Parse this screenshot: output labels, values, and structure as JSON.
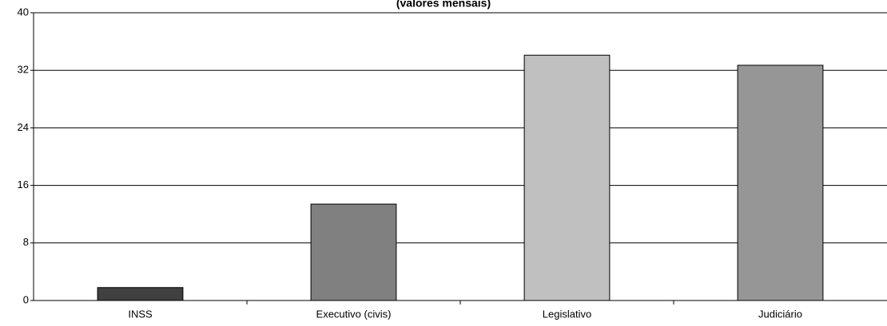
{
  "chart_data": {
    "type": "bar",
    "subtitle": "(valores mensais)",
    "categories": [
      "INSS",
      "Executivo (civis)",
      "Legislativo",
      "Judiciário"
    ],
    "values": [
      1.8,
      13.4,
      34.1,
      32.7
    ],
    "colors": [
      "#404040",
      "#808080",
      "#c0c0c0",
      "#969696"
    ],
    "ylim": [
      0,
      40
    ],
    "yticks": [
      0,
      8,
      16,
      24,
      32,
      40
    ],
    "grid": true
  }
}
